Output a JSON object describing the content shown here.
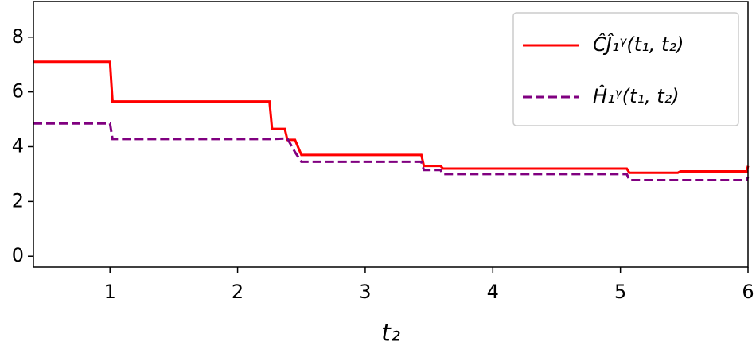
{
  "chart_data": {
    "type": "line",
    "x": [
      0.4,
      1.0,
      1.02,
      2.25,
      2.27,
      2.37,
      2.39,
      2.45,
      2.5,
      3.44,
      3.46,
      3.59,
      3.61,
      5.05,
      5.07,
      5.45,
      5.47,
      5.99,
      6.0
    ],
    "series": [
      {
        "name": "ĈĴ₁ᵞ(t₁, t₂)",
        "color": "#ff0000",
        "dash": false,
        "values": [
          7.1,
          7.1,
          5.65,
          5.65,
          4.65,
          4.65,
          4.25,
          4.25,
          3.7,
          3.7,
          3.3,
          3.3,
          3.2,
          3.2,
          3.05,
          3.05,
          3.1,
          3.1,
          3.3
        ]
      },
      {
        "name": "Ĥ₁ᵞ(t₁, t₂)",
        "color": "#800080",
        "dash": true,
        "values": [
          4.85,
          4.85,
          4.28,
          4.28,
          4.28,
          4.3,
          4.3,
          3.8,
          3.45,
          3.45,
          3.15,
          3.15,
          3.0,
          3.0,
          2.78,
          2.78,
          2.78,
          2.78,
          2.9
        ]
      }
    ],
    "x_label": "t₂",
    "xlim": [
      0.4,
      6
    ],
    "xticks": [
      1,
      2,
      3,
      4,
      5,
      6
    ],
    "ylim": [
      -0.4,
      9.3
    ],
    "yticks": [
      0,
      2,
      4,
      6,
      8
    ],
    "legend": "upper right",
    "grid": false
  }
}
